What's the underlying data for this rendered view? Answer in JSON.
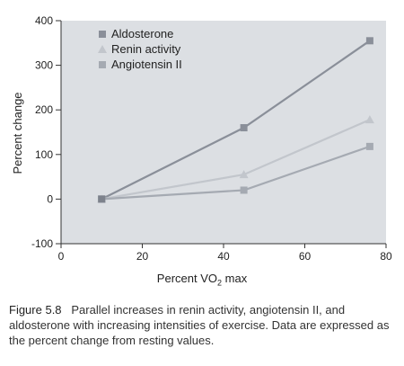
{
  "chart_data": {
    "type": "line",
    "xlabel_prefix": "Percent ",
    "xlabel_v": "V",
    "xlabel_o": "O",
    "xlabel_sub": "2",
    "xlabel_suffix": " max",
    "ylabel": "Percent change",
    "xlim": [
      0,
      80
    ],
    "ylim": [
      -100,
      400
    ],
    "xticks": [
      "0",
      "20",
      "40",
      "60",
      "80"
    ],
    "yticks": [
      "-100",
      "0",
      "100",
      "200",
      "300",
      "400"
    ],
    "legend_position": "top-left",
    "grid": false,
    "series": [
      {
        "name": "Aldosterone",
        "color": "#8a8f99",
        "marker": "square",
        "x": [
          10,
          45,
          76
        ],
        "y": [
          0,
          160,
          355
        ]
      },
      {
        "name": "Renin activity",
        "color": "#c2c6cc",
        "marker": "triangle",
        "x": [
          10,
          45,
          76
        ],
        "y": [
          0,
          55,
          178
        ]
      },
      {
        "name": "Angiotensin II",
        "color": "#a5aab2",
        "marker": "square",
        "x": [
          10,
          45,
          76
        ],
        "y": [
          0,
          20,
          118
        ]
      }
    ]
  },
  "caption": {
    "label": "Figure 5.8",
    "text": "Parallel increases in renin activity, angiotensin II, and aldosterone with increasing intensities of exercise. Data are expressed as the percent change from resting values."
  }
}
